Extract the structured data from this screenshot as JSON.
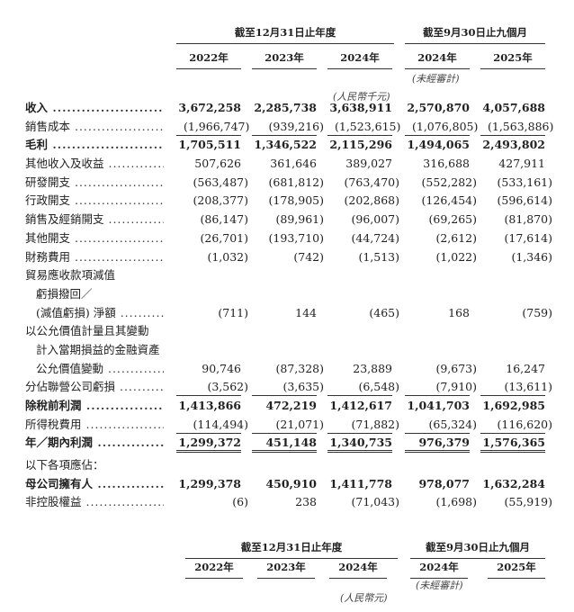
{
  "header": {
    "group_annual": "截至12月31日止年度",
    "group_nine_months": "截至9月30日止九個月",
    "years": [
      "2022年",
      "2023年",
      "2024年",
      "2024年",
      "2025年"
    ],
    "unaudited": "(未經審計)",
    "currency_top": "(人民幣千元)"
  },
  "rows": [
    {
      "label": "收入",
      "values": [
        "3,672,258",
        "2,285,738",
        "3,638,911",
        "2,570,870",
        "4,057,688"
      ],
      "bold": true
    },
    {
      "label": "銷售成本",
      "values": [
        "(1,966,747)",
        "(939,216)",
        "(1,523,615)",
        "(1,076,805)",
        "(1,563,886)"
      ],
      "line": "single"
    },
    {
      "label": "毛利",
      "values": [
        "1,705,511",
        "1,346,522",
        "2,115,296",
        "1,494,065",
        "2,493,802"
      ],
      "bold": true
    },
    {
      "label": "其他收入及收益",
      "values": [
        "507,626",
        "361,646",
        "389,027",
        "316,688",
        "427,911"
      ]
    },
    {
      "label": "研發開支",
      "values": [
        "(563,487)",
        "(681,812)",
        "(763,470)",
        "(552,282)",
        "(533,161)"
      ]
    },
    {
      "label": "行政開支",
      "values": [
        "(208,377)",
        "(178,905)",
        "(202,868)",
        "(126,454)",
        "(596,614)"
      ]
    },
    {
      "label": "銷售及經銷開支",
      "values": [
        "(86,147)",
        "(89,961)",
        "(96,007)",
        "(69,265)",
        "(81,870)"
      ]
    },
    {
      "label": "其他開支",
      "values": [
        "(26,701)",
        "(193,710)",
        "(44,724)",
        "(2,612)",
        "(17,614)"
      ]
    },
    {
      "label": "財務費用",
      "values": [
        "(1,032)",
        "(742)",
        "(1,513)",
        "(1,022)",
        "(1,346)"
      ]
    },
    {
      "label": "貿易應收款項減值",
      "values": [],
      "nodots": true
    },
    {
      "label": "虧損撥回／",
      "values": [],
      "nodots": true,
      "indent": true
    },
    {
      "label": "(減值虧損) 淨額",
      "values": [
        "(711)",
        "144",
        "(465)",
        "168",
        "(759)"
      ],
      "indent": true
    },
    {
      "label": "以公允價值計量且其變動",
      "values": [],
      "nodots": true
    },
    {
      "label": "計入當期損益的金融資產",
      "values": [],
      "nodots": true,
      "indent": true
    },
    {
      "label": "公允價值變動",
      "values": [
        "90,746",
        "(87,328)",
        "23,889",
        "(9,673)",
        "16,247"
      ],
      "indent": true
    },
    {
      "label": "分佔聯營公司虧損",
      "values": [
        "(3,562)",
        "(3,635)",
        "(6,548)",
        "(7,910)",
        "(13,611)"
      ],
      "line": "single"
    },
    {
      "label": "除稅前利潤",
      "values": [
        "1,413,866",
        "472,219",
        "1,412,617",
        "1,041,703",
        "1,692,985"
      ],
      "bold": true
    },
    {
      "label": "所得稅費用",
      "values": [
        "(114,494)",
        "(21,071)",
        "(71,882)",
        "(65,324)",
        "(116,620)"
      ],
      "line": "single"
    },
    {
      "label": "年／期內利潤",
      "values": [
        "1,299,372",
        "451,148",
        "1,340,735",
        "976,379",
        "1,576,365"
      ],
      "bold": true,
      "line": "double"
    },
    {
      "label": "以下各項應佔：",
      "values": [],
      "nodots": true
    },
    {
      "label": "母公司擁有人",
      "values": [
        "1,299,378",
        "450,910",
        "1,411,778",
        "978,077",
        "1,632,284"
      ],
      "bold": true
    },
    {
      "label": "非控股權益",
      "values": [
        "(6)",
        "238",
        "(71,043)",
        "(1,698)",
        "(55,919)"
      ]
    }
  ],
  "footer_header": {
    "group_annual": "截至12月31日止年度",
    "group_nine_months": "截至9月30日止九個月",
    "years": [
      "2022年",
      "2023年",
      "2024年",
      "2024年",
      "2025年"
    ],
    "unaudited": "(未經審計)",
    "currency": "(人民幣元)"
  }
}
